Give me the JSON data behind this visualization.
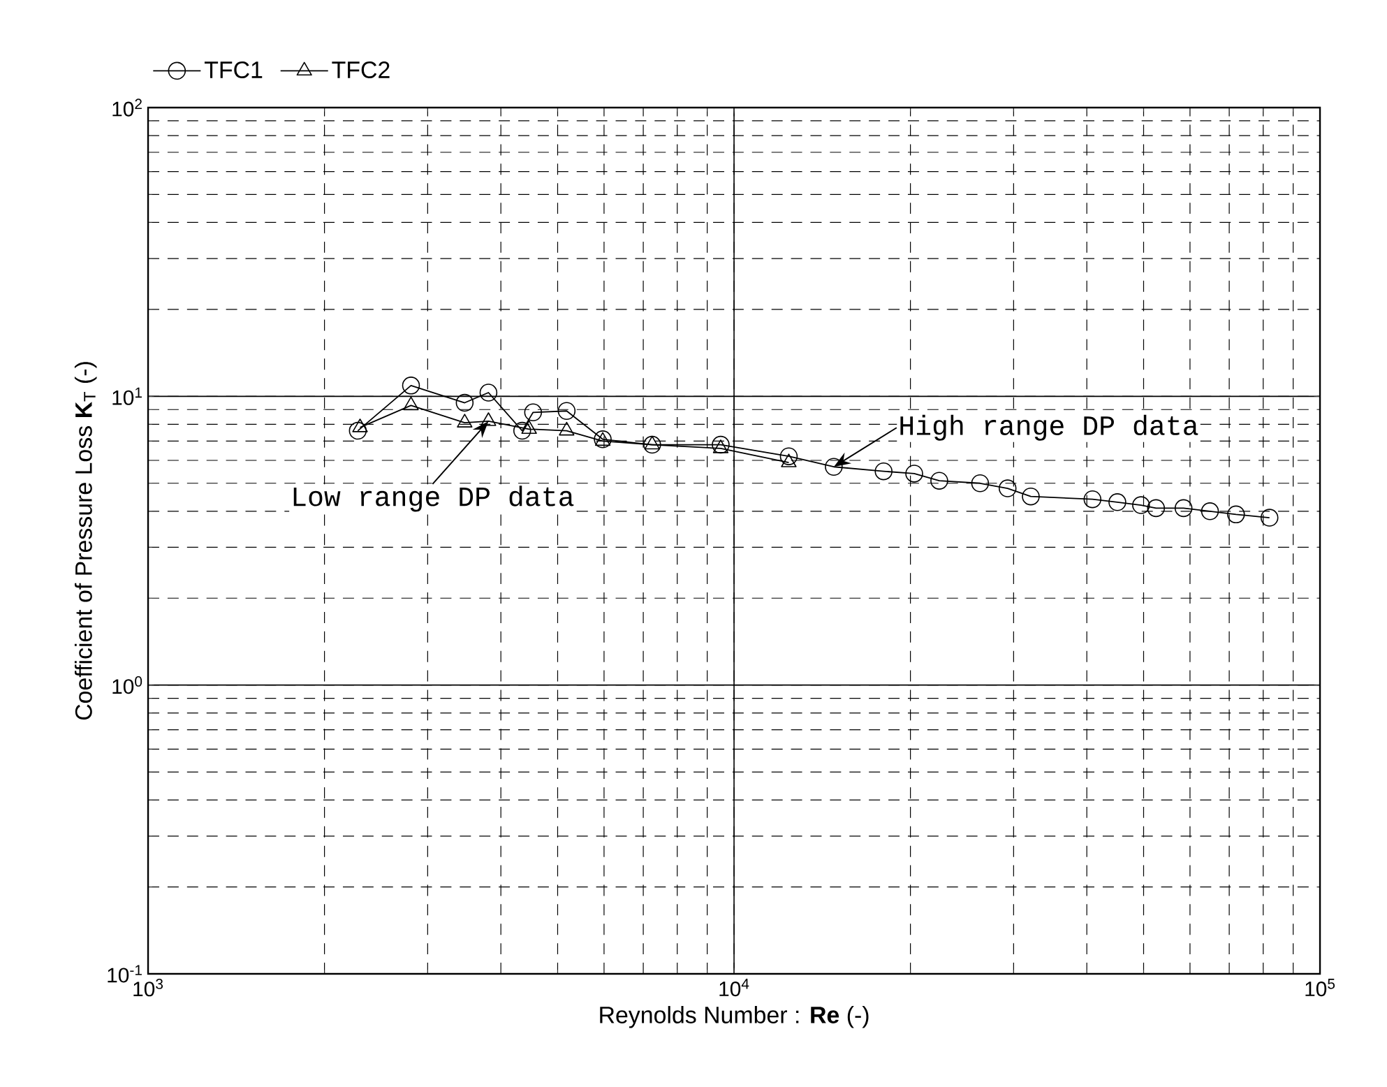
{
  "chart_data": {
    "type": "line",
    "xlabel": "Reynolds Number : **Re**  (-)",
    "ylabel": "Coefficient of Pressure Loss  **K**$_{T}$  (-)",
    "log": "xy",
    "grid": true,
    "legend": "top left",
    "xlim": [
      1000,
      100000
    ],
    "ylim": [
      0.1,
      100
    ],
    "xticks": [
      {
        "value": 1000,
        "label": "10$^{3}$"
      },
      {
        "value": 10000,
        "label": "10$^{4}$"
      },
      {
        "value": 100000,
        "label": "10$^{5}$"
      }
    ],
    "yticks": [
      {
        "value": 0.1,
        "label": "10$^{-1}$"
      },
      {
        "value": 1,
        "label": "10$^{0}$"
      },
      {
        "value": 10,
        "label": "10$^{1}$"
      },
      {
        "value": 100,
        "label": "10$^{2}$"
      }
    ],
    "series": [
      {
        "name": "TFC1",
        "color": "#000000",
        "marker": "circle",
        "line_style": "solid",
        "x": [
          2280,
          2810,
          3470,
          3810,
          4350,
          4540,
          5180,
          5970,
          7250,
          9490,
          12400,
          14800,
          18000,
          20300,
          22400,
          26300,
          29300,
          32100,
          40900,
          45100,
          49500,
          52500,
          58500,
          64900,
          71900,
          82000
        ],
        "values": [
          7.6,
          10.9,
          9.5,
          10.3,
          7.6,
          8.8,
          8.9,
          7.1,
          6.8,
          6.8,
          6.2,
          5.7,
          5.5,
          5.4,
          5.1,
          5.0,
          4.8,
          4.5,
          4.4,
          4.3,
          4.2,
          4.1,
          4.1,
          4.0,
          3.9,
          3.8
        ]
      },
      {
        "name": "TFC2",
        "color": "#000000",
        "marker": "triangle",
        "line_style": "solid",
        "x": [
          2300,
          2810,
          3470,
          3810,
          4470,
          5180,
          5970,
          7250,
          9490,
          12400
        ],
        "values": [
          7.8,
          9.3,
          8.1,
          8.2,
          7.7,
          7.6,
          7.0,
          6.8,
          6.6,
          5.9
        ]
      }
    ],
    "annotations": [
      {
        "text": "Low range DP data",
        "x": 3810,
        "y": 8.2
      },
      {
        "text": "High range DP data",
        "x": 14800,
        "y": 5.7
      }
    ]
  }
}
